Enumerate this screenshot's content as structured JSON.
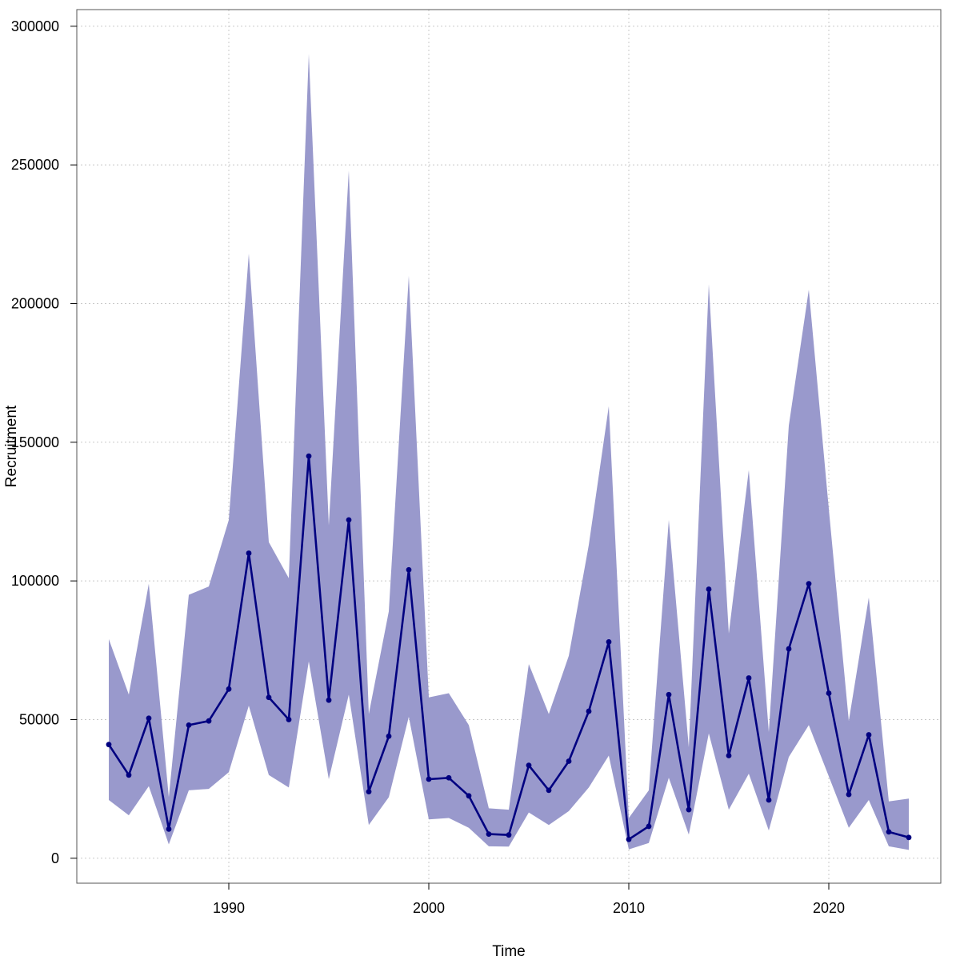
{
  "chart_data": {
    "type": "line",
    "title": "",
    "xlabel": "Time",
    "ylabel": "Recruitment",
    "xlim": [
      1982.4,
      2025.6
    ],
    "ylim": [
      -9000,
      306000
    ],
    "x_ticks": [
      1990,
      2000,
      2010,
      2020
    ],
    "y_ticks": [
      0,
      50000,
      100000,
      150000,
      200000,
      250000,
      300000
    ],
    "grid": true,
    "colors": {
      "line": "#000080",
      "band": "#9999cc",
      "grid": "#c8c8c8"
    },
    "series": [
      {
        "x": [
          1984,
          1985,
          1986,
          1987,
          1988,
          1989,
          1990,
          1991,
          1992,
          1993,
          1994,
          1995,
          1996,
          1997,
          1998,
          1999,
          2000,
          2001,
          2002,
          2003,
          2004,
          2005,
          2006,
          2007,
          2008,
          2009,
          2010,
          2011,
          2012,
          2013,
          2014,
          2015,
          2016,
          2017,
          2018,
          2019,
          2020,
          2021,
          2022,
          2023,
          2024
        ],
        "values": [
          41000,
          30000,
          50500,
          10500,
          48000,
          49500,
          61000,
          110000,
          58000,
          50000,
          145000,
          57000,
          122000,
          24000,
          44000,
          104000,
          28500,
          29000,
          22500,
          8700,
          8400,
          33500,
          24500,
          35000,
          53000,
          78000,
          6800,
          11500,
          59000,
          17500,
          97000,
          37000,
          65000,
          21000,
          75500,
          99000,
          59500,
          23000,
          44500,
          9500,
          7500
        ],
        "lower": [
          21000,
          15500,
          26000,
          5000,
          24500,
          25000,
          31000,
          55000,
          30000,
          25500,
          71000,
          28500,
          59000,
          12000,
          22000,
          51000,
          14000,
          14500,
          11000,
          4300,
          4200,
          16500,
          12000,
          17000,
          25500,
          37000,
          3200,
          5500,
          29000,
          8500,
          45000,
          17500,
          30500,
          10000,
          36500,
          48000,
          29500,
          11000,
          21000,
          4300,
          3000
        ],
        "upper": [
          79000,
          59000,
          99000,
          22000,
          95000,
          98000,
          122000,
          218000,
          114000,
          101000,
          290000,
          120000,
          248000,
          52000,
          89000,
          210000,
          58000,
          59500,
          48000,
          18000,
          17500,
          70000,
          52000,
          73000,
          113000,
          163000,
          14500,
          24500,
          122000,
          40000,
          207000,
          81000,
          140000,
          45500,
          156000,
          205000,
          126000,
          49500,
          94000,
          20500,
          21500
        ]
      }
    ]
  }
}
